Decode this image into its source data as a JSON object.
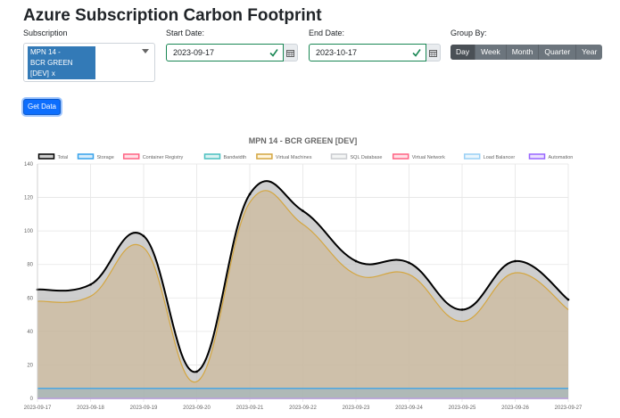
{
  "page": {
    "title": "Azure Subscription Carbon Footprint"
  },
  "form": {
    "subscription_label": "Subscription",
    "subscription_chip_line1": "MPN 14 -",
    "subscription_chip_line2": "BCR GREEN",
    "subscription_chip_line3": "[DEV]",
    "subscription_chip_remove": "x",
    "start_date_label": "Start Date:",
    "start_date_value": "2023-09-17",
    "end_date_label": "End Date:",
    "end_date_value": "2023-10-17",
    "group_by_label": "Group By:",
    "group_by_options": [
      "Day",
      "Week",
      "Month",
      "Quarter",
      "Year"
    ],
    "group_by_selected": "Day",
    "get_data_label": "Get Data"
  },
  "colors": {
    "valid": "#198754",
    "primary": "#0d6efd",
    "chip": "#337ab7"
  },
  "chart_data": {
    "type": "area",
    "title": "MPN 14 - BCR GREEN [DEV]",
    "xlabel": "",
    "ylabel": "",
    "ylim": [
      0,
      140
    ],
    "yticks": [
      0,
      20,
      40,
      60,
      80,
      100,
      120,
      140
    ],
    "grid": true,
    "legend_position": "top",
    "categories": [
      "2023-09-17",
      "2023-09-18",
      "2023-09-19",
      "2023-09-20",
      "2023-09-21",
      "2023-09-22",
      "2023-09-23",
      "2023-09-24",
      "2023-09-25",
      "2023-09-26",
      "2023-09-27"
    ],
    "series": [
      {
        "name": "Total",
        "color": "#000000",
        "fill": "rgba(190,190,190,0.75)",
        "values": [
          65,
          68,
          97,
          16,
          122,
          112,
          82,
          81,
          53,
          82,
          59
        ]
      },
      {
        "name": "Storage",
        "color": "#36a2eb",
        "fill": "rgba(54,162,235,0.2)",
        "values": [
          6,
          6,
          6,
          6,
          6,
          6,
          6,
          6,
          6,
          6,
          6
        ]
      },
      {
        "name": "Container Registry",
        "color": "#ff6384",
        "fill": "rgba(255,99,132,0.2)",
        "values": [
          0,
          0,
          0,
          0,
          0,
          0,
          0,
          0,
          0,
          0,
          0
        ]
      },
      {
        "name": "Bandwidth",
        "color": "#4bc0c0",
        "fill": "rgba(75,192,192,0.2)",
        "values": [
          0,
          0,
          0,
          0,
          0,
          0,
          0,
          0,
          0,
          0,
          0
        ]
      },
      {
        "name": "Virtual Machines",
        "color": "#d4a640",
        "fill": "rgba(255,205,86,0.2)",
        "values": [
          58,
          61,
          90,
          10,
          117,
          104,
          74,
          74,
          46,
          75,
          53
        ]
      },
      {
        "name": "SQL Database",
        "color": "#c9cbcf",
        "fill": "rgba(201,203,207,0.2)",
        "values": [
          0,
          0,
          0,
          0,
          0,
          0,
          0,
          0,
          0,
          0,
          0
        ]
      },
      {
        "name": "Virtual Network",
        "color": "#ff6384",
        "fill": "rgba(255,99,132,0.2)",
        "values": [
          0,
          0,
          0,
          0,
          0,
          0,
          0,
          0,
          0,
          0,
          0
        ]
      },
      {
        "name": "Load Balancer",
        "color": "#9ad0f5",
        "fill": "rgba(154,208,245,0.2)",
        "values": [
          0,
          0,
          0,
          0,
          0,
          0,
          0,
          0,
          0,
          0,
          0
        ]
      },
      {
        "name": "Automation",
        "color": "#9966ff",
        "fill": "rgba(153,102,255,0.2)",
        "values": [
          0,
          0,
          0,
          0,
          0,
          0,
          0,
          0,
          0,
          0,
          0
        ]
      }
    ]
  }
}
